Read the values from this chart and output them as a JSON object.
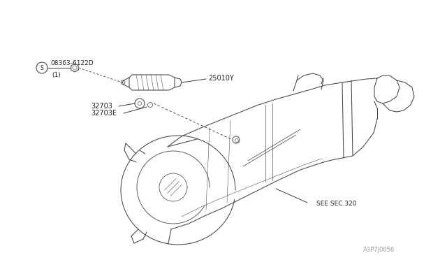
{
  "bg_color": "#ffffff",
  "line_color": "#444444",
  "text_color": "#222222",
  "fig_width": 6.4,
  "fig_height": 3.72,
  "dpi": 100,
  "labels": {
    "part1_s": "S",
    "part1": "08363-6122D",
    "part1_sub": "(1)",
    "part2": "25010Y",
    "part3": "32703",
    "part4": "32703E",
    "see_sec": "SEE SEC.320",
    "fig_num": "A3P7J0056"
  }
}
